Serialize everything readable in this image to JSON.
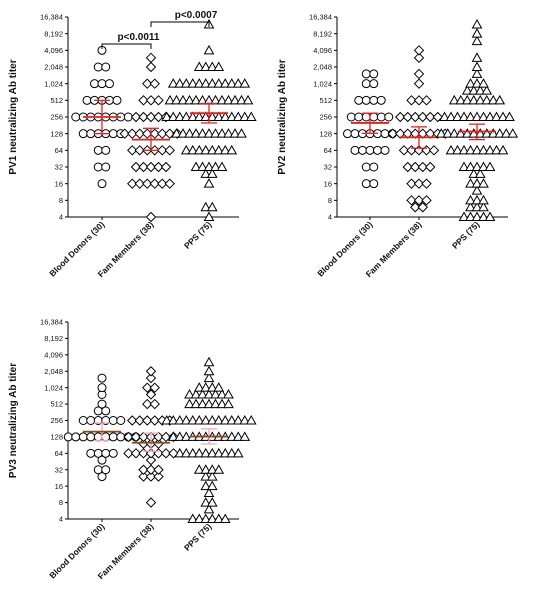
{
  "chart_data": [
    {
      "type": "scatter",
      "id": "pv1",
      "ylabel": "PV1 neutralizing Ab titer",
      "yscale": "log2",
      "ylim": [
        4,
        16384
      ],
      "yticks": [
        "4",
        "8",
        "16",
        "32",
        "64",
        "128",
        "256",
        "512",
        "1,024",
        "2,048",
        "4,096",
        "8,192",
        "16,384"
      ],
      "categories": [
        "Blood Donors (30)",
        "Fam Members (38)",
        "PPS (75)"
      ],
      "series": [
        {
          "values": [
            4096,
            2048,
            2048,
            1024,
            1024,
            1024,
            512,
            512,
            512,
            512,
            512,
            256,
            256,
            256,
            256,
            256,
            256,
            256,
            256,
            128,
            128,
            128,
            128,
            128,
            128,
            64,
            64,
            32,
            32,
            16
          ],
          "mean": 256,
          "ci": [
            128,
            512
          ]
        },
        {
          "values": [
            3000,
            2048,
            1024,
            1024,
            512,
            512,
            512,
            256,
            256,
            256,
            256,
            256,
            128,
            128,
            128,
            128,
            128,
            128,
            128,
            128,
            64,
            64,
            64,
            64,
            64,
            64,
            32,
            32,
            32,
            32,
            32,
            16,
            16,
            16,
            16,
            16,
            16,
            4
          ],
          "mean": 100,
          "ci": [
            64,
            160
          ]
        },
        {
          "values": [
            12000,
            4096,
            2048,
            2048,
            2048,
            2048,
            1024,
            1024,
            1024,
            1024,
            1024,
            1024,
            1024,
            1024,
            1024,
            1024,
            1024,
            1024,
            512,
            512,
            512,
            512,
            512,
            512,
            512,
            512,
            512,
            512,
            512,
            512,
            512,
            256,
            256,
            256,
            256,
            256,
            256,
            256,
            256,
            256,
            256,
            256,
            256,
            256,
            256,
            128,
            128,
            128,
            128,
            128,
            128,
            128,
            128,
            128,
            128,
            128,
            64,
            64,
            64,
            64,
            64,
            64,
            64,
            64,
            32,
            32,
            32,
            32,
            32,
            24,
            24,
            16,
            6,
            6,
            4
          ],
          "mean": 300,
          "ci": [
            200,
            450
          ]
        }
      ],
      "annotations": [
        {
          "text": "p<0.0011",
          "from": 0,
          "to": 1
        },
        {
          "text": "p<0.0007",
          "from": 1,
          "to": 2
        }
      ]
    },
    {
      "type": "scatter",
      "id": "pv2",
      "ylabel": "PV2 neutralizing Ab titer",
      "yscale": "log2",
      "ylim": [
        4,
        16384
      ],
      "yticks": [
        "4",
        "8",
        "16",
        "32",
        "64",
        "128",
        "256",
        "512",
        "1,024",
        "2,048",
        "4,096",
        "8,192",
        "16,384"
      ],
      "categories": [
        "Blood Donors (30)",
        "Fam Members (38)",
        "PPS (75)"
      ],
      "series": [
        {
          "values": [
            1536,
            1536,
            1024,
            1024,
            512,
            512,
            512,
            512,
            256,
            256,
            256,
            256,
            256,
            256,
            128,
            128,
            128,
            128,
            128,
            128,
            128,
            64,
            64,
            64,
            64,
            64,
            32,
            32,
            16,
            16
          ],
          "mean": 200,
          "ci": [
            130,
            300
          ]
        },
        {
          "values": [
            4096,
            3000,
            1536,
            1024,
            512,
            512,
            512,
            256,
            256,
            256,
            256,
            256,
            256,
            128,
            128,
            128,
            128,
            128,
            128,
            128,
            128,
            64,
            64,
            64,
            64,
            64,
            32,
            32,
            32,
            32,
            16,
            16,
            16,
            8,
            8,
            8,
            6,
            6
          ],
          "mean": 110,
          "ci": [
            70,
            170
          ]
        },
        {
          "values": [
            12000,
            8192,
            6000,
            3000,
            2048,
            1536,
            1024,
            1024,
            1024,
            768,
            768,
            768,
            768,
            512,
            512,
            512,
            512,
            512,
            512,
            512,
            512,
            256,
            256,
            256,
            256,
            256,
            256,
            256,
            256,
            256,
            256,
            256,
            128,
            128,
            128,
            128,
            128,
            128,
            128,
            128,
            128,
            128,
            128,
            128,
            64,
            64,
            64,
            64,
            64,
            64,
            64,
            64,
            64,
            32,
            32,
            32,
            32,
            32,
            24,
            24,
            16,
            16,
            16,
            12,
            8,
            8,
            8,
            6,
            6,
            6,
            4,
            4,
            4,
            4,
            4
          ],
          "mean": 140,
          "ci": [
            100,
            190
          ]
        }
      ],
      "annotations": []
    },
    {
      "type": "scatter",
      "id": "pv3",
      "ylabel": "PV3 neutralizing Ab titer",
      "yscale": "log2",
      "ylim": [
        4,
        16384
      ],
      "yticks": [
        "4",
        "8",
        "16",
        "32",
        "64",
        "128",
        "256",
        "512",
        "1,024",
        "2,048",
        "4,096",
        "8,192",
        "16,384"
      ],
      "categories": [
        "Blood Donors (30)",
        "Fam Members (38)",
        "PPS (75)"
      ],
      "series": [
        {
          "values": [
            1536,
            1024,
            768,
            512,
            384,
            384,
            256,
            256,
            256,
            256,
            256,
            256,
            128,
            128,
            128,
            128,
            128,
            128,
            128,
            128,
            128,
            128,
            64,
            64,
            64,
            64,
            48,
            32,
            32,
            24
          ],
          "mean": 160,
          "ci": [
            110,
            230
          ]
        },
        {
          "values": [
            2048,
            1536,
            1024,
            1024,
            768,
            512,
            512,
            256,
            256,
            256,
            256,
            256,
            256,
            128,
            128,
            128,
            128,
            128,
            128,
            128,
            96,
            96,
            96,
            64,
            64,
            64,
            64,
            64,
            64,
            64,
            48,
            32,
            32,
            32,
            24,
            24,
            24,
            8
          ],
          "mean": 100,
          "ci": [
            70,
            150
          ]
        },
        {
          "values": [
            3000,
            2048,
            1536,
            1024,
            1024,
            1024,
            1024,
            768,
            768,
            768,
            768,
            768,
            768,
            768,
            512,
            512,
            512,
            512,
            512,
            512,
            512,
            256,
            256,
            256,
            256,
            256,
            256,
            256,
            256,
            256,
            256,
            256,
            256,
            256,
            256,
            128,
            128,
            128,
            128,
            128,
            128,
            128,
            128,
            128,
            128,
            128,
            128,
            64,
            64,
            64,
            64,
            64,
            64,
            64,
            64,
            64,
            64,
            32,
            32,
            32,
            32,
            24,
            24,
            16,
            16,
            12,
            8,
            8,
            6,
            4,
            4,
            4,
            4,
            4,
            4
          ],
          "mean": 130,
          "ci": [
            95,
            180
          ]
        }
      ],
      "annotations": []
    }
  ],
  "colors": {
    "mean": "#e8201b",
    "mean_pv3": "#8b4a1e",
    "ci": "#e8201b",
    "ci_pv3": "#f4a6b8",
    "marker": "#000000"
  }
}
